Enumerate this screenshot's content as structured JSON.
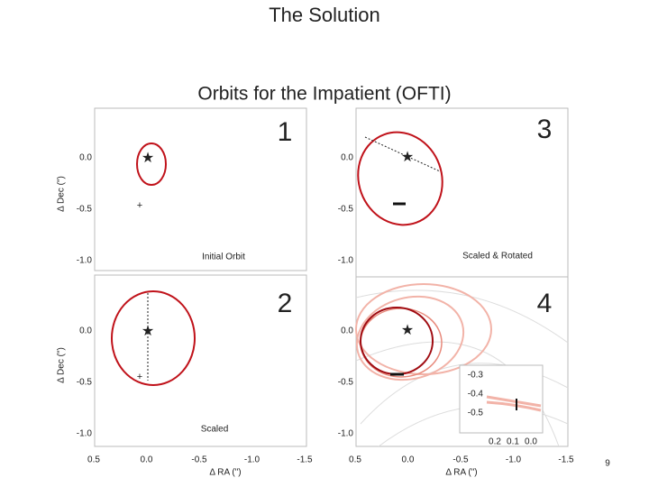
{
  "title": "The Solution",
  "figure": {
    "title": "Orbits for the Impatient (OFTI)",
    "panels": [
      {
        "number": "1",
        "label": "Initial Orbit"
      },
      {
        "number": "2",
        "label": "Scaled"
      },
      {
        "number": "3",
        "label": "Scaled & Rotated"
      },
      {
        "number": "4"
      }
    ],
    "y_axis_label": "Δ Dec (\")",
    "x_axis_label": "Δ RA (\")",
    "y_ticks": [
      "0.0",
      "-0.5",
      "-1.0"
    ],
    "x_ticks": [
      "0.5",
      "0.0",
      "-0.5",
      "-1.0",
      "-1.5"
    ],
    "inset": {
      "y_ticks": [
        "-0.3",
        "-0.4",
        "-0.5"
      ],
      "x_ticks": [
        "0.2",
        "0.1",
        "0.0"
      ]
    }
  },
  "page_number": "9"
}
